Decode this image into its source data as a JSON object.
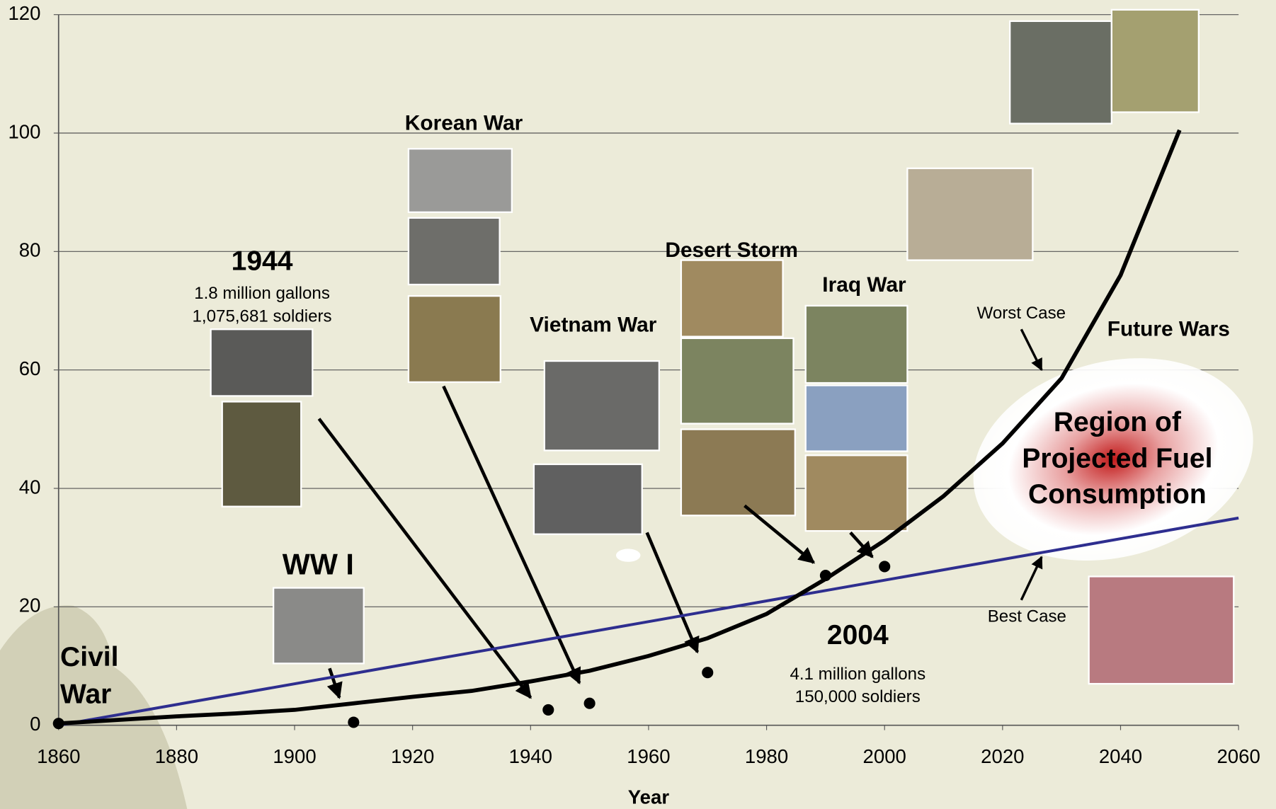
{
  "chart_data": {
    "type": "line",
    "x_label": "Year",
    "xlim": [
      1860,
      2060
    ],
    "xticks": [
      1860,
      1880,
      1900,
      1920,
      1940,
      1960,
      1980,
      2000,
      2020,
      2040,
      2060
    ],
    "ylim": [
      0,
      120
    ],
    "yticks": [
      0,
      20,
      40,
      60,
      80,
      100,
      120
    ],
    "grid": true,
    "series": [
      {
        "mode": "markers",
        "color": "#000000",
        "x": [
          1860,
          1910,
          1943,
          1950,
          1970,
          1990,
          2000
        ],
        "values": [
          0.3,
          0.5,
          2.6,
          3.7,
          8.9,
          25.3,
          26.8
        ]
      },
      {
        "name": "Worst Case",
        "mode": "line",
        "color": "#000000",
        "x": [
          1860,
          1880,
          1890,
          1900,
          1910,
          1920,
          1930,
          1940,
          1950,
          1960,
          1970,
          1980,
          1990,
          2000,
          2010,
          2020,
          2030,
          2040,
          2050
        ],
        "values": [
          0.3,
          1.5,
          2,
          2.6,
          3.7,
          4.8,
          5.8,
          7.4,
          9.2,
          11.7,
          14.7,
          18.8,
          24.7,
          31.2,
          38.7,
          47.6,
          58.6,
          76,
          100.5
        ]
      },
      {
        "name": "Best Case",
        "mode": "line",
        "color": "#2e2e8f",
        "x": [
          1860,
          2060
        ],
        "values": [
          0,
          35
        ]
      }
    ],
    "annotations": [
      {
        "lines": [
          "Korean War"
        ]
      },
      {
        "lines": [
          "1944",
          "1.8 million gallons",
          "1,075,681 soldiers"
        ]
      },
      {
        "lines": [
          "WW I"
        ]
      },
      {
        "lines": [
          "Civil",
          "War"
        ]
      },
      {
        "lines": [
          "Vietnam War"
        ]
      },
      {
        "lines": [
          "Desert Storm"
        ]
      },
      {
        "lines": [
          "Iraq War"
        ]
      },
      {
        "lines": [
          "Future Wars"
        ]
      },
      {
        "lines": [
          "Region of",
          "Projected Fuel",
          "Consumption"
        ]
      },
      {
        "lines": [
          "2004",
          "4.1 million gallons",
          "150,000 soldiers"
        ]
      }
    ]
  }
}
